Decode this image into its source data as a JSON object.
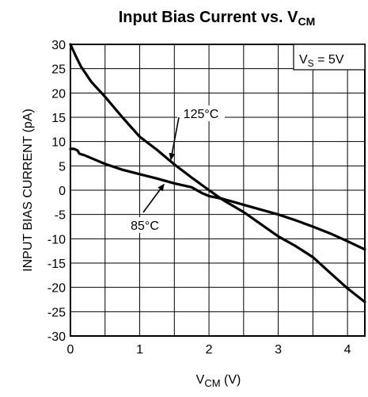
{
  "chart_data": {
    "type": "line",
    "title": "Input Bias Current vs. V",
    "title_sub": "CM",
    "xlabel": "V",
    "xlabel_sub": "CM",
    "xlabel_unit": " (V)",
    "ylabel": "INPUT BIAS CURRENT (pA)",
    "xlim": [
      0,
      4.25
    ],
    "ylim": [
      -30,
      30
    ],
    "xticks": [
      0,
      1,
      2,
      3,
      4
    ],
    "xtick_labels": [
      "0",
      "1",
      "2",
      "3",
      "4"
    ],
    "yticks": [
      30,
      25,
      20,
      15,
      10,
      5,
      0,
      -5,
      -10,
      -15,
      -20,
      -25,
      -30
    ],
    "ytick_labels": [
      "30",
      "25",
      "20",
      "15",
      "10",
      "5",
      "0",
      "-5",
      "-10",
      "-15",
      "-20",
      "-25",
      "-30"
    ],
    "grid": true,
    "legend_box": {
      "main": "V",
      "sub": "S",
      "tail": " = 5V",
      "position": "top-right"
    },
    "series": [
      {
        "name": "125°C",
        "x": [
          0.0,
          0.08,
          0.15,
          0.3,
          0.5,
          0.75,
          1.0,
          1.25,
          1.5,
          1.75,
          2.0,
          2.2,
          2.5,
          2.75,
          3.0,
          3.25,
          3.5,
          3.75,
          4.0,
          4.25
        ],
        "y": [
          30,
          27.5,
          25.5,
          22.3,
          19.2,
          15.0,
          11.0,
          8.3,
          5.3,
          2.6,
          0.0,
          -2.0,
          -4.5,
          -7.0,
          -9.5,
          -11.5,
          -13.8,
          -17.0,
          -20.2,
          -23.0
        ]
      },
      {
        "name": "85°C",
        "x": [
          0.0,
          0.05,
          0.1,
          0.13,
          0.2,
          0.5,
          0.75,
          1.0,
          1.25,
          1.5,
          1.75,
          1.9,
          2.0,
          2.2,
          2.5,
          3.0,
          3.25,
          3.5,
          3.75,
          4.0,
          4.25
        ],
        "y": [
          8.5,
          8.5,
          8.2,
          7.5,
          7.2,
          5.4,
          4.2,
          3.3,
          2.4,
          1.4,
          0.6,
          -0.6,
          -1.2,
          -1.8,
          -3.0,
          -5.0,
          -6.2,
          -7.5,
          -8.9,
          -10.5,
          -12.2
        ]
      }
    ],
    "annotations": [
      {
        "text": "125°C",
        "series": "125°C",
        "arrow_to": [
          1.45,
          6.3
        ]
      },
      {
        "text": "85°C",
        "series": "85°C",
        "arrow_to": [
          1.35,
          1.2
        ]
      }
    ],
    "colors": {
      "line": "#000000",
      "grid": "#000000",
      "background": "#ffffff"
    }
  }
}
